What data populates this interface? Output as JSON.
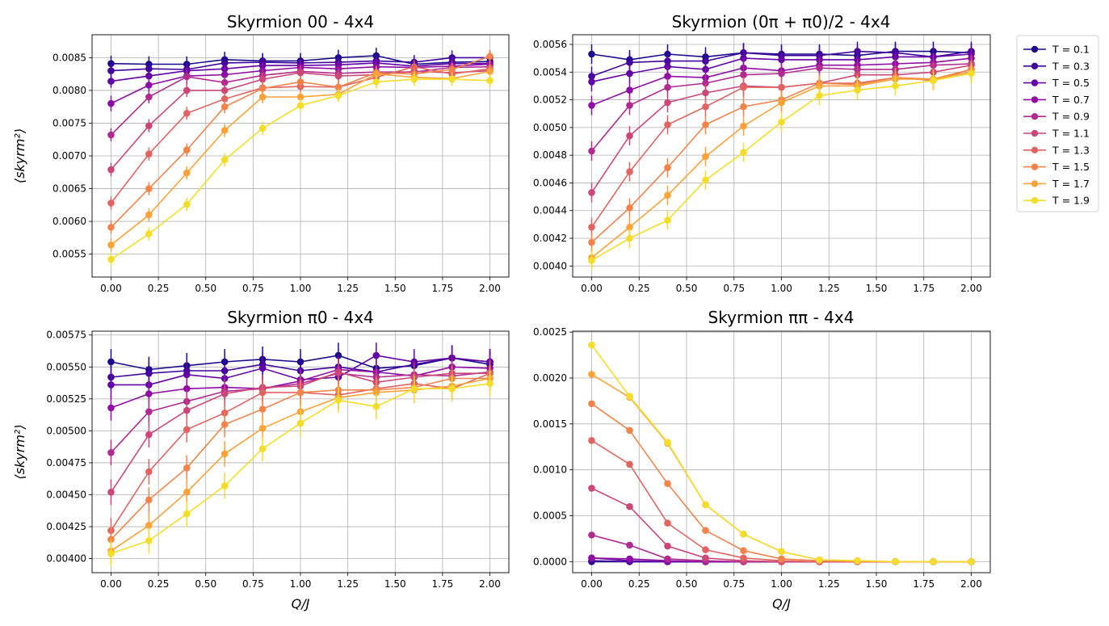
{
  "legend": {
    "placement": "outside-right",
    "entries": [
      "T = 0.1",
      "T = 0.3",
      "T = 0.5",
      "T = 0.7",
      "T = 0.9",
      "T = 1.1",
      "T = 1.3",
      "T = 1.5",
      "T = 1.7",
      "T = 1.9"
    ],
    "colors": [
      "#1a0b8d",
      "#3f049c",
      "#6201a6",
      "#8f0da4",
      "#b12a90",
      "#cc4778",
      "#e16462",
      "#f2844b",
      "#fba238",
      "#f4dd2a"
    ]
  },
  "chart_data": [
    {
      "type": "line",
      "title": "Skyrmion 00 - 4x4",
      "xlabel": "",
      "ylabel": "⟨skyrm²⟩",
      "xlim": [
        -0.1,
        2.1
      ],
      "ylim": [
        0.00515,
        0.00885
      ],
      "xticks": [
        "0.00",
        "0.25",
        "0.50",
        "0.75",
        "1.00",
        "1.25",
        "1.50",
        "1.75",
        "2.00"
      ],
      "yticks": [
        "0.0055",
        "0.0060",
        "0.0065",
        "0.0070",
        "0.0075",
        "0.0080",
        "0.0085"
      ],
      "grid": true,
      "x": [
        0.0,
        0.2,
        0.4,
        0.6,
        0.8,
        1.0,
        1.2,
        1.4,
        1.6,
        1.8,
        2.0
      ],
      "series": [
        {
          "name": "T = 0.1",
          "values": [
            0.00841,
            0.0084,
            0.0084,
            0.00847,
            0.00845,
            0.00845,
            0.0085,
            0.00853,
            0.0084,
            0.00843,
            0.00844
          ],
          "err": 0.00012
        },
        {
          "name": "T = 0.3",
          "values": [
            0.0083,
            0.00833,
            0.00832,
            0.00842,
            0.00843,
            0.00842,
            0.00843,
            0.00845,
            0.00843,
            0.0085,
            0.0085
          ],
          "err": 0.00011
        },
        {
          "name": "T = 0.5",
          "values": [
            0.00814,
            0.00822,
            0.0083,
            0.00833,
            0.00838,
            0.00838,
            0.00839,
            0.00842,
            0.00837,
            0.00841,
            0.00841
          ],
          "err": 0.0001
        },
        {
          "name": "T = 0.7",
          "values": [
            0.0078,
            0.00808,
            0.00822,
            0.00824,
            0.0083,
            0.00835,
            0.00833,
            0.00836,
            0.00835,
            0.00837,
            0.0084
          ],
          "err": 0.00012
        },
        {
          "name": "T = 0.9",
          "values": [
            0.00732,
            0.0079,
            0.00821,
            0.00812,
            0.00823,
            0.00829,
            0.00826,
            0.00828,
            0.00828,
            0.00835,
            0.00836
          ],
          "err": 0.0001
        },
        {
          "name": "T = 1.1",
          "values": [
            0.00679,
            0.00746,
            0.008,
            0.008,
            0.00817,
            0.00827,
            0.00822,
            0.00824,
            0.00829,
            0.00827,
            0.0083
          ],
          "err": 0.0001
        },
        {
          "name": "T = 1.3",
          "values": [
            0.00628,
            0.00703,
            0.00765,
            0.00787,
            0.00804,
            0.00806,
            0.00805,
            0.0082,
            0.00836,
            0.00825,
            0.00833
          ],
          "err": 0.0001
        },
        {
          "name": "T = 1.5",
          "values": [
            0.00591,
            0.0065,
            0.00709,
            0.00775,
            0.00803,
            0.00813,
            0.00805,
            0.00827,
            0.00825,
            0.00832,
            0.00852
          ],
          "err": 0.0001
        },
        {
          "name": "T = 1.7",
          "values": [
            0.00564,
            0.0061,
            0.00674,
            0.00739,
            0.0079,
            0.0079,
            0.00794,
            0.00825,
            0.0082,
            0.00818,
            0.00829
          ],
          "err": 0.0001
        },
        {
          "name": "T = 1.9",
          "values": [
            0.00542,
            0.00581,
            0.00626,
            0.00694,
            0.00742,
            0.00777,
            0.00792,
            0.00813,
            0.00817,
            0.00817,
            0.00815
          ],
          "err": 0.0001
        }
      ]
    },
    {
      "type": "line",
      "title": "Skyrmion (0π + π0)/2 - 4x4",
      "xlabel": "",
      "ylabel": "",
      "xlim": [
        -0.1,
        2.1
      ],
      "ylim": [
        0.00392,
        0.00567
      ],
      "xticks": [
        "0.00",
        "0.25",
        "0.50",
        "0.75",
        "1.00",
        "1.25",
        "1.50",
        "1.75",
        "2.00"
      ],
      "yticks": [
        "0.0040",
        "0.0042",
        "0.0044",
        "0.0046",
        "0.0048",
        "0.0050",
        "0.0052",
        "0.0054",
        "0.0056"
      ],
      "grid": true,
      "x": [
        0.0,
        0.2,
        0.4,
        0.6,
        0.8,
        1.0,
        1.2,
        1.4,
        1.6,
        1.8,
        2.0
      ],
      "series": [
        {
          "name": "T = 0.1",
          "values": [
            0.00553,
            0.00549,
            0.00553,
            0.00551,
            0.00554,
            0.00553,
            0.00553,
            0.00552,
            0.00555,
            0.00555,
            0.00554
          ],
          "err": 7e-05
        },
        {
          "name": "T = 0.3",
          "values": [
            0.00537,
            0.00547,
            0.00548,
            0.00548,
            0.00554,
            0.00552,
            0.00552,
            0.00555,
            0.00554,
            0.00551,
            0.00555
          ],
          "err": 7e-05
        },
        {
          "name": "T = 0.5",
          "values": [
            0.00533,
            0.00539,
            0.00544,
            0.00542,
            0.0055,
            0.00549,
            0.00549,
            0.00549,
            0.00551,
            0.00551,
            0.00553
          ],
          "err": 7e-05
        },
        {
          "name": "T = 0.7",
          "values": [
            0.00516,
            0.00527,
            0.00537,
            0.00536,
            0.00543,
            0.00541,
            0.00545,
            0.00545,
            0.00546,
            0.00547,
            0.0055
          ],
          "err": 7e-05
        },
        {
          "name": "T = 0.9",
          "values": [
            0.00483,
            0.00516,
            0.00529,
            0.00532,
            0.00538,
            0.00539,
            0.00543,
            0.00542,
            0.00542,
            0.00545,
            0.00546
          ],
          "err": 7e-05
        },
        {
          "name": "T = 1.1",
          "values": [
            0.00453,
            0.00494,
            0.00518,
            0.00525,
            0.0053,
            0.00529,
            0.00532,
            0.00538,
            0.00538,
            0.0054,
            0.00545
          ],
          "err": 7e-05
        },
        {
          "name": "T = 1.3",
          "values": [
            0.00428,
            0.00468,
            0.00502,
            0.00515,
            0.00529,
            0.00529,
            0.00532,
            0.00532,
            0.00536,
            0.00534,
            0.00542
          ],
          "err": 7e-05
        },
        {
          "name": "T = 1.5",
          "values": [
            0.00417,
            0.00442,
            0.00471,
            0.00502,
            0.00515,
            0.0052,
            0.00532,
            0.00531,
            0.00536,
            0.00535,
            0.00542
          ],
          "err": 7e-05
        },
        {
          "name": "T = 1.7",
          "values": [
            0.00406,
            0.00428,
            0.00451,
            0.00479,
            0.00501,
            0.00518,
            0.0053,
            0.0053,
            0.00535,
            0.00535,
            0.0054
          ],
          "err": 7e-05
        },
        {
          "name": "T = 1.9",
          "values": [
            0.00404,
            0.0042,
            0.00433,
            0.00462,
            0.00482,
            0.00504,
            0.00523,
            0.00527,
            0.0053,
            0.00534,
            0.00539
          ],
          "err": 7e-05
        }
      ]
    },
    {
      "type": "line",
      "title": "Skyrmion π0 - 4x4",
      "xlabel": "Q/J",
      "ylabel": "⟨skyrm²⟩",
      "xlim": [
        -0.1,
        2.1
      ],
      "ylim": [
        0.00389,
        0.00578
      ],
      "xticks": [
        "0.00",
        "0.25",
        "0.50",
        "0.75",
        "1.00",
        "1.25",
        "1.50",
        "1.75",
        "2.00"
      ],
      "yticks": [
        "0.00400",
        "0.00425",
        "0.00450",
        "0.00475",
        "0.00500",
        "0.00525",
        "0.00550",
        "0.00575"
      ],
      "grid": true,
      "x": [
        0.0,
        0.2,
        0.4,
        0.6,
        0.8,
        1.0,
        1.2,
        1.4,
        1.6,
        1.8,
        2.0
      ],
      "series": [
        {
          "name": "T = 0.1",
          "values": [
            0.00554,
            0.00548,
            0.00551,
            0.00554,
            0.00556,
            0.00554,
            0.00559,
            0.00549,
            0.00551,
            0.00557,
            0.00552
          ],
          "err": 0.0001
        },
        {
          "name": "T = 0.3",
          "values": [
            0.00542,
            0.00545,
            0.00547,
            0.00547,
            0.00552,
            0.00547,
            0.0055,
            0.00546,
            0.00552,
            0.00557,
            0.00554
          ],
          "err": 0.0001
        },
        {
          "name": "T = 0.5",
          "values": [
            0.00536,
            0.00536,
            0.00544,
            0.00541,
            0.00549,
            0.0054,
            0.00542,
            0.00559,
            0.00554,
            0.00557,
            0.00554
          ],
          "err": 0.0001
        },
        {
          "name": "T = 0.7",
          "values": [
            0.00518,
            0.00529,
            0.00533,
            0.00534,
            0.00533,
            0.00539,
            0.00548,
            0.00546,
            0.00543,
            0.0055,
            0.00549
          ],
          "err": 0.0001
        },
        {
          "name": "T = 0.9",
          "values": [
            0.00483,
            0.00515,
            0.00523,
            0.00531,
            0.00533,
            0.00537,
            0.00545,
            0.00542,
            0.00544,
            0.00543,
            0.00546
          ],
          "err": 0.0001
        },
        {
          "name": "T = 1.1",
          "values": [
            0.00452,
            0.00497,
            0.00516,
            0.00529,
            0.00534,
            0.00535,
            0.00546,
            0.00538,
            0.00542,
            0.00545,
            0.00545
          ],
          "err": 0.0001
        },
        {
          "name": "T = 1.3",
          "values": [
            0.00422,
            0.00468,
            0.00501,
            0.00514,
            0.0053,
            0.0053,
            0.00528,
            0.00533,
            0.00537,
            0.00533,
            0.00545
          ],
          "err": 0.0001
        },
        {
          "name": "T = 1.5",
          "values": [
            0.00415,
            0.00446,
            0.00471,
            0.00505,
            0.00517,
            0.0053,
            0.00532,
            0.00532,
            0.00534,
            0.00541,
            0.00541
          ],
          "err": 0.0001
        },
        {
          "name": "T = 1.7",
          "values": [
            0.00406,
            0.00426,
            0.00452,
            0.00482,
            0.00502,
            0.00515,
            0.00526,
            0.0053,
            0.00532,
            0.00535,
            0.00541
          ],
          "err": 0.0001
        },
        {
          "name": "T = 1.9",
          "values": [
            0.00404,
            0.00414,
            0.00435,
            0.00457,
            0.00486,
            0.00506,
            0.00524,
            0.00519,
            0.00533,
            0.00533,
            0.00537
          ],
          "err": 0.0001
        }
      ]
    },
    {
      "type": "line",
      "title": "Skyrmion ππ - 4x4",
      "xlabel": "Q/J",
      "ylabel": "",
      "xlim": [
        -0.1,
        2.1
      ],
      "ylim": [
        -0.00012,
        0.00251
      ],
      "xticks": [
        "0.00",
        "0.25",
        "0.50",
        "0.75",
        "1.00",
        "1.25",
        "1.50",
        "1.75",
        "2.00"
      ],
      "yticks": [
        "0.0000",
        "0.0005",
        "0.0010",
        "0.0015",
        "0.0020",
        "0.0025"
      ],
      "grid": true,
      "x": [
        0.0,
        0.2,
        0.4,
        0.6,
        0.8,
        1.0,
        1.2,
        1.4,
        1.6,
        1.8,
        2.0
      ],
      "series": [
        {
          "name": "T = 0.1",
          "values": [
            0,
            0,
            0,
            0,
            0,
            0,
            0,
            0,
            0,
            0,
            0
          ],
          "err": 0
        },
        {
          "name": "T = 0.3",
          "values": [
            1e-05,
            0,
            0,
            0,
            0,
            0,
            0,
            0,
            0,
            0,
            0
          ],
          "err": 0
        },
        {
          "name": "T = 0.5",
          "values": [
            4e-05,
            1e-05,
            0,
            0,
            0,
            0,
            0,
            0,
            0,
            0,
            0
          ],
          "err": 0
        },
        {
          "name": "T = 0.7",
          "values": [
            4e-05,
            3e-05,
            1e-05,
            0,
            0,
            0,
            0,
            0,
            0,
            0,
            0
          ],
          "err": 0
        },
        {
          "name": "T = 0.9",
          "values": [
            0.00029,
            0.00018,
            3e-05,
            1e-05,
            0,
            0,
            0,
            0,
            0,
            0,
            0
          ],
          "err": 0
        },
        {
          "name": "T = 1.1",
          "values": [
            0.0008,
            0.0006,
            0.00017,
            4e-05,
            1e-05,
            0,
            0,
            0,
            0,
            0,
            0
          ],
          "err": 0
        },
        {
          "name": "T = 1.3",
          "values": [
            0.00132,
            0.00106,
            0.00042,
            0.00013,
            4e-05,
            1e-05,
            0,
            0,
            0,
            0,
            0
          ],
          "err": 0
        },
        {
          "name": "T = 1.5",
          "values": [
            0.00172,
            0.00143,
            0.00085,
            0.00034,
            0.00012,
            3e-05,
            1e-05,
            0,
            0,
            0,
            0
          ],
          "err": 0
        },
        {
          "name": "T = 1.7",
          "values": [
            0.00204,
            0.00179,
            0.00129,
            0.00062,
            0.0003,
            0.00011,
            2e-05,
            1e-05,
            0,
            0,
            0
          ],
          "err": 0
        },
        {
          "name": "T = 1.9",
          "values": [
            0.00236,
            0.0018,
            0.0013,
            0.00062,
            0.0003,
            0.00011,
            2e-05,
            1e-05,
            0,
            0,
            0
          ],
          "err": 0
        }
      ]
    }
  ]
}
